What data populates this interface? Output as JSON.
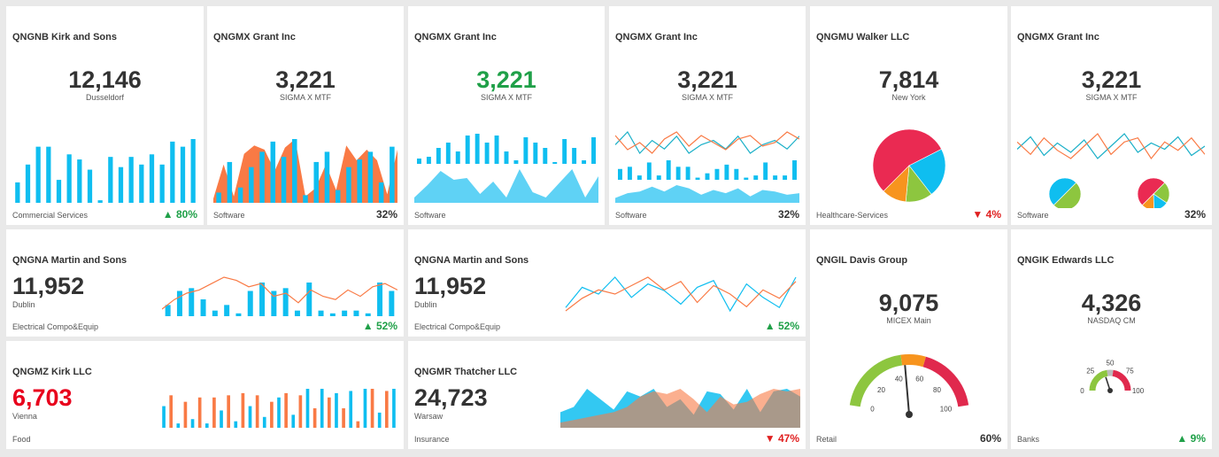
{
  "colors": {
    "blue": "#0fbef0",
    "orange": "#f97a45",
    "up": "#1fa048",
    "down": "#e02020",
    "pie_red": "#ea2a52",
    "pie_green": "#8dc63f",
    "pie_orange": "#f7941e"
  },
  "tiles": {
    "t1": {
      "title": "QNGNB Kirk and Sons",
      "value": "12,146",
      "subtitle": "Dusseldorf",
      "category": "Commercial Services",
      "change": "80%",
      "trend": "up",
      "arrow": "▲"
    },
    "t2": {
      "title": "QNGMX Grant Inc",
      "value": "3,221",
      "subtitle": "SIGMA X MTF",
      "category": "Software",
      "change": "32%"
    },
    "t3": {
      "title": "QNGMX Grant Inc",
      "value": "3,221",
      "subtitle": "SIGMA X MTF",
      "category": "Software"
    },
    "t4": {
      "title": "QNGMX Grant Inc",
      "value": "3,221",
      "subtitle": "SIGMA X MTF",
      "category": "Software",
      "change": "32%"
    },
    "t5": {
      "title": "QNGMU Walker LLC",
      "value": "7,814",
      "subtitle": "New York",
      "category": "Healthcare-Services",
      "change": "4%",
      "trend": "down",
      "arrow": "▼"
    },
    "t6": {
      "title": "QNGMX Grant Inc",
      "value": "3,221",
      "subtitle": "SIGMA X MTF",
      "category": "Software",
      "change": "32%"
    },
    "t7": {
      "title": "QNGNA Martin and Sons",
      "value": "11,952",
      "subtitle": "Dublin",
      "category": "Electrical Compo&Equip",
      "change": "52%",
      "trend": "up",
      "arrow": "▲"
    },
    "t8": {
      "title": "QNGNA Martin and Sons",
      "value": "11,952",
      "subtitle": "Dublin",
      "category": "Electrical Compo&Equip",
      "change": "52%",
      "trend": "up",
      "arrow": "▲"
    },
    "t9": {
      "title": "QNGIL Davis Group",
      "value": "9,075",
      "subtitle": "MICEX Main",
      "category": "Retail",
      "change": "60%",
      "gauge": {
        "ticks": [
          "0",
          "20",
          "40",
          "60",
          "80",
          "100"
        ],
        "value": 47
      }
    },
    "t10": {
      "title": "QNGIK Edwards LLC",
      "value": "4,326",
      "subtitle": "NASDAQ CM",
      "category": "Banks",
      "change": "9%",
      "trend": "up",
      "arrow": "▲",
      "gauge": {
        "ticks": [
          "0",
          "25",
          "50",
          "75",
          "100"
        ],
        "value": 40
      }
    },
    "t11": {
      "title": "QNGMZ Kirk LLC",
      "value": "6,703",
      "subtitle": "Vienna",
      "category": "Food"
    },
    "t12": {
      "title": "QNGMR Thatcher LLC",
      "value": "24,723",
      "subtitle": "Warsaw",
      "category": "Insurance",
      "change": "47%",
      "trend": "down",
      "arrow": "▼"
    }
  },
  "chart_data": [
    {
      "tile": "t1",
      "type": "bar",
      "values": [
        8,
        15,
        22,
        22,
        9,
        19,
        17,
        13,
        1,
        18,
        14,
        18,
        15,
        19,
        15,
        24,
        22,
        25
      ]
    },
    {
      "tile": "t2",
      "type": "bar",
      "values": [
        4,
        16,
        6,
        14,
        20,
        24,
        18,
        25,
        3,
        16,
        20,
        5,
        14,
        17,
        20,
        8,
        22
      ],
      "area": [
        2,
        18,
        3,
        23,
        27,
        25,
        15,
        26,
        30,
        3,
        7,
        18,
        6,
        27,
        20,
        25,
        20,
        4,
        25
      ]
    },
    {
      "tile": "t3",
      "type": "bar",
      "values": [
        3,
        4,
        9,
        12,
        7,
        16,
        17,
        12,
        16,
        7,
        2,
        15,
        12,
        9,
        1,
        14,
        9,
        2,
        15
      ],
      "area": [
        3,
        10,
        18,
        13,
        14,
        5,
        12,
        3,
        19,
        6,
        3,
        11,
        19,
        3,
        15
      ]
    },
    {
      "tile": "t4",
      "type": "bar",
      "values": [
        5,
        6,
        2,
        8,
        2,
        9,
        6,
        6,
        1,
        3,
        5,
        7,
        5,
        1,
        2,
        8,
        2,
        2,
        9
      ],
      "area": [
        3,
        6,
        7,
        10,
        7,
        11,
        9,
        5,
        8,
        6,
        9,
        4,
        8,
        7,
        5,
        6
      ],
      "line1": [
        10,
        13,
        8,
        11,
        9,
        12,
        8,
        10,
        11,
        9,
        12,
        8,
        10,
        11,
        9,
        12
      ],
      "line2": [
        12,
        8,
        10,
        7,
        11,
        13,
        9,
        12,
        10,
        8,
        11,
        12,
        9,
        10,
        13,
        11
      ]
    },
    {
      "tile": "t5",
      "type": "pie",
      "slices": [
        {
          "color": "#ea2a52",
          "value": 55
        },
        {
          "color": "#0fbef0",
          "value": 22
        },
        {
          "color": "#8dc63f",
          "value": 12
        },
        {
          "color": "#f7941e",
          "value": 11
        }
      ]
    },
    {
      "tile": "t6",
      "type": "line",
      "line1": [
        10,
        14,
        8,
        12,
        9,
        13,
        7,
        11,
        15,
        9,
        12,
        10,
        14,
        8,
        11
      ],
      "line2": [
        12,
        9,
        13,
        10,
        8,
        11,
        14,
        9,
        12,
        13,
        8,
        12,
        10,
        13,
        9
      ]
    },
    {
      "tile": "t7",
      "type": "bar",
      "values": [
        4,
        9,
        10,
        6,
        2,
        4,
        1,
        9,
        12,
        9,
        10,
        2,
        12,
        2,
        1,
        2,
        2,
        1,
        12,
        9
      ],
      "line": [
        3,
        6,
        8,
        9,
        11,
        13,
        12,
        10,
        11,
        7,
        8,
        5,
        9,
        7,
        6,
        9,
        7,
        10,
        11,
        9
      ]
    },
    {
      "tile": "t8",
      "type": "line",
      "line1": [
        3,
        9,
        7,
        12,
        6,
        10,
        8,
        4,
        9,
        11,
        2,
        10,
        6,
        3,
        12
      ],
      "line2": [
        5,
        8,
        10,
        9,
        11,
        13,
        10,
        12,
        7,
        11,
        9,
        6,
        10,
        8,
        12
      ]
    },
    {
      "tile": "t11",
      "type": "bar",
      "values": [
        10,
        15,
        2,
        12,
        4,
        14,
        2,
        14,
        8,
        15,
        3,
        16,
        10,
        15,
        5,
        12,
        14,
        16,
        6,
        15,
        18,
        9,
        18,
        14,
        16,
        9,
        17,
        3,
        18,
        18,
        7,
        17,
        18
      ],
      "alt": true
    },
    {
      "tile": "t12",
      "type": "area",
      "area1": [
        12,
        16,
        30,
        22,
        14,
        28,
        24,
        30,
        16,
        22,
        10,
        28,
        26,
        14,
        30,
        12,
        28,
        30,
        24
      ],
      "area2": [
        4,
        6,
        8,
        10,
        12,
        16,
        24,
        28,
        26,
        30,
        22,
        12,
        24,
        18,
        20,
        26,
        30,
        28,
        30
      ]
    }
  ]
}
